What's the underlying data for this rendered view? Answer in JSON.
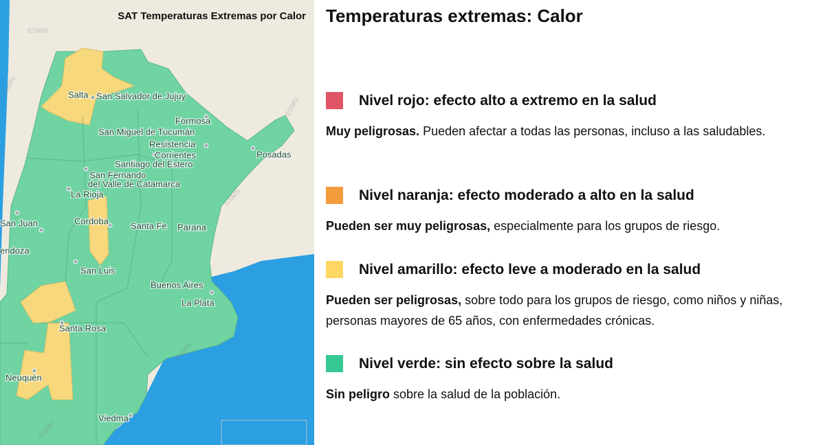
{
  "map": {
    "title": "SAT Temperaturas Extremas por Calor",
    "watermark": "©SMN",
    "cities": [
      "Salta",
      "San Salvador de Jujuy",
      "Formosa",
      "San Miguel de Tucumán",
      "Resistencia",
      "Corrientes",
      "Santiago del Estero",
      "San Fernando",
      "del Valle de Catamarca",
      "La Rioja",
      "Posadas",
      "San Juan",
      "Cordoba",
      "Santa Fe",
      "Parana",
      "endoza",
      "San Luis",
      "Buenos Aires",
      "La Plata",
      "Santa Rosa",
      "Neuquén",
      "Viedma"
    ]
  },
  "panel": {
    "title": "Temperaturas extremas: Calor",
    "levels": [
      {
        "color": "#e05565",
        "heading": "Nivel rojo: efecto alto a extremo en la salud",
        "bold": "Muy peligrosas.",
        "text": "Pueden afectar a todas las personas, incluso a las saludables."
      },
      {
        "color": "#f39a3b",
        "heading": "Nivel naranja: efecto moderado a alto en la salud",
        "bold": "Pueden ser muy peligrosas,",
        "text": "especialmente para los grupos de riesgo."
      },
      {
        "color": "#fdd663",
        "heading": "Nivel amarillo: efecto leve a moderado en la salud",
        "bold": "Pueden ser peligrosas,",
        "text": "sobre todo para los grupos de riesgo, como niños y niñas, personas mayores de 65 años, con enfermedades crónicas."
      },
      {
        "color": "#36c893",
        "heading": "Nivel verde: sin efecto sobre la salud",
        "bold": "Sin peligro",
        "text": "sobre la salud de la población."
      }
    ]
  }
}
